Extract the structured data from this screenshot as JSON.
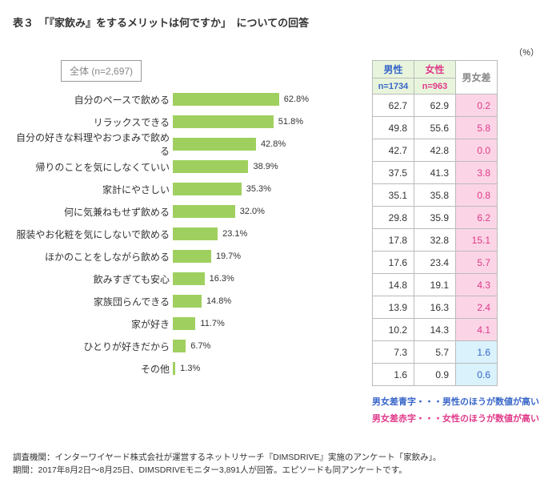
{
  "title": "表３　「『家飲み』をするメリットは何ですか」　についての回答",
  "unit": "（%）",
  "all_label": "全体 (n=2,697)",
  "bar_color": "#9fd05f",
  "bar_max_pct": 100,
  "columns": {
    "male": {
      "label": "男性",
      "sub": "n=1734",
      "color": "#3866c9",
      "bg": "#e8f5dc"
    },
    "female": {
      "label": "女性",
      "sub": "n=963",
      "color": "#e03a8a",
      "bg": "#e8f5dc"
    },
    "diff": {
      "label": "男女差",
      "color": "#888"
    }
  },
  "diff_colors": {
    "male_higher_bg": "#d9f2fb",
    "male_higher_text": "#3866c9",
    "female_higher_bg": "#fbd5e6",
    "female_higher_text": "#e03a8a"
  },
  "rows": [
    {
      "label": "自分のペースで飲める",
      "total": 62.8,
      "male": 62.7,
      "female": 62.9,
      "diff": 0.2,
      "higher": "female"
    },
    {
      "label": "リラックスできる",
      "total": 51.8,
      "male": 49.8,
      "female": 55.6,
      "diff": 5.8,
      "higher": "female"
    },
    {
      "label": "自分の好きな料理やおつまみで飲める",
      "total": 42.8,
      "male": 42.7,
      "female": 42.8,
      "diff": 0.0,
      "higher": "female"
    },
    {
      "label": "帰りのことを気にしなくていい",
      "total": 38.9,
      "male": 37.5,
      "female": 41.3,
      "diff": 3.8,
      "higher": "female"
    },
    {
      "label": "家計にやさしい",
      "total": 35.3,
      "male": 35.1,
      "female": 35.8,
      "diff": 0.8,
      "higher": "female"
    },
    {
      "label": "何に気兼ねもせず飲める",
      "total": 32.0,
      "male": 29.8,
      "female": 35.9,
      "diff": 6.2,
      "higher": "female"
    },
    {
      "label": "服装やお化粧を気にしないで飲める",
      "total": 23.1,
      "male": 17.8,
      "female": 32.8,
      "diff": 15.1,
      "higher": "female"
    },
    {
      "label": "ほかのことをしながら飲める",
      "total": 19.7,
      "male": 17.6,
      "female": 23.4,
      "diff": 5.7,
      "higher": "female"
    },
    {
      "label": "飲みすぎても安心",
      "total": 16.3,
      "male": 14.8,
      "female": 19.1,
      "diff": 4.3,
      "higher": "female"
    },
    {
      "label": "家族団らんできる",
      "total": 14.8,
      "male": 13.9,
      "female": 16.3,
      "diff": 2.4,
      "higher": "female"
    },
    {
      "label": "家が好き",
      "total": 11.7,
      "male": 10.2,
      "female": 14.3,
      "diff": 4.1,
      "higher": "female"
    },
    {
      "label": "ひとりが好きだから",
      "total": 6.7,
      "male": 7.3,
      "female": 5.7,
      "diff": 1.6,
      "higher": "male"
    },
    {
      "label": "その他",
      "total": 1.3,
      "male": 1.6,
      "female": 0.9,
      "diff": 0.6,
      "higher": "male"
    }
  ],
  "legend": {
    "male": "男女差青字・・・男性のほうが数値が高い",
    "female": "男女差赤字・・・女性のほうが数値が高い"
  },
  "footer": {
    "line1": "調査機関：インターワイヤード株式会社が運営するネットリサーチ『DIMSDRIVE』実施のアンケート「家飲み」。",
    "line2": "期間：2017年8月2日～8月25日、DIMSDRIVEモニター3,891人が回答。エピソードも同アンケートです。"
  }
}
